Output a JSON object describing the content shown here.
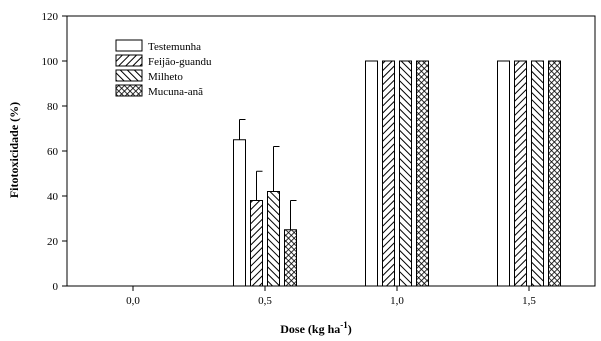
{
  "chart_data": {
    "type": "bar",
    "title": "",
    "xlabel": "Dose (kg ha",
    "xlabel_sup": "-1",
    "xlabel_close": ")",
    "ylabel": "Fitotoxicidade (%)",
    "ylim": [
      0,
      120
    ],
    "yticks": [
      0,
      20,
      40,
      60,
      80,
      100,
      120
    ],
    "categories": [
      "0,0",
      "0,5",
      "1,0",
      "1,5"
    ],
    "legend_position": "top-left",
    "series": [
      {
        "name": "Testemunha",
        "pattern": "none",
        "values": [
          0,
          65,
          100,
          100
        ],
        "errors": [
          0,
          9,
          0,
          0
        ]
      },
      {
        "name": "Feijão-guandu",
        "pattern": "diagonal",
        "values": [
          0,
          38,
          100,
          100
        ],
        "errors": [
          0,
          13,
          0,
          0
        ]
      },
      {
        "name": "Milheto",
        "pattern": "backslash",
        "values": [
          0,
          42,
          100,
          100
        ],
        "errors": [
          0,
          20,
          0,
          0
        ]
      },
      {
        "name": "Mucuna-anã",
        "pattern": "crosshatch",
        "values": [
          0,
          25,
          100,
          100
        ],
        "errors": [
          0,
          13,
          0,
          0
        ]
      }
    ],
    "grid": false
  }
}
